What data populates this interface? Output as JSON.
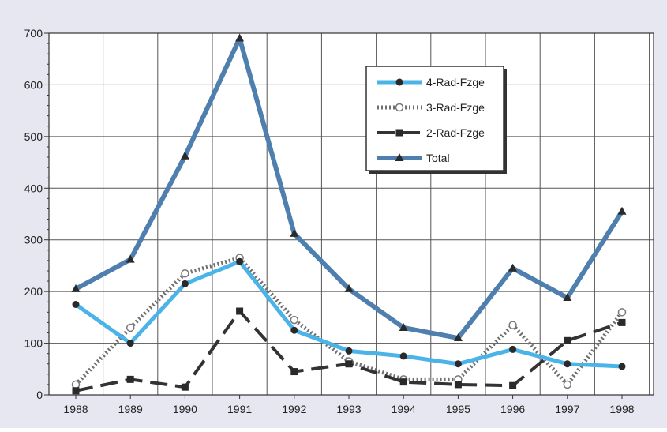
{
  "chart_data": {
    "type": "line",
    "x": [
      "1988",
      "1989",
      "1990",
      "1991",
      "1992",
      "1993",
      "1994",
      "1995",
      "1996",
      "1997",
      "1998"
    ],
    "ylim": [
      0,
      700
    ],
    "yticks": [
      0,
      100,
      200,
      300,
      400,
      500,
      600,
      700
    ],
    "grid": true,
    "legend_position": "top-right",
    "background_color": "#e6e7f0",
    "plot_background": "#ffffff",
    "grid_color": "#555555",
    "series": [
      {
        "name": "4-Rad-Fzge",
        "color": "#4ab3e8",
        "style": "solid",
        "marker": "circle",
        "values": [
          175,
          100,
          215,
          258,
          125,
          85,
          75,
          60,
          88,
          60,
          55
        ]
      },
      {
        "name": "3-Rad-Fzge",
        "color": "#6e6e6e",
        "style": "dotted",
        "marker": "open-circle",
        "values": [
          20,
          130,
          235,
          265,
          145,
          65,
          30,
          30,
          135,
          20,
          160
        ]
      },
      {
        "name": "2-Rad-Fzge",
        "color": "#333333",
        "style": "dashed",
        "marker": "square",
        "values": [
          8,
          30,
          15,
          162,
          45,
          60,
          25,
          20,
          18,
          105,
          140
        ]
      },
      {
        "name": "Total",
        "color": "#4f7fae",
        "style": "solid-thick",
        "marker": "triangle",
        "values": [
          205,
          262,
          462,
          690,
          312,
          205,
          130,
          110,
          245,
          188,
          355
        ]
      }
    ]
  }
}
